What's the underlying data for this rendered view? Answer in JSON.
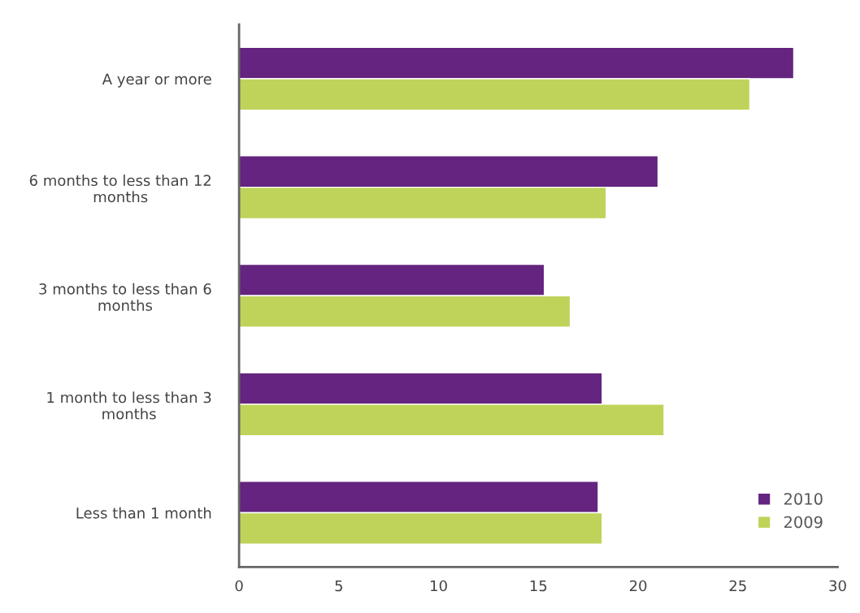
{
  "chart_data": {
    "type": "bar",
    "orientation": "horizontal",
    "categories": [
      "A year or more",
      "6 months to less than 12 months",
      "3 months to less than 6 months",
      "1 month to less than 3 months",
      "Less than 1 month"
    ],
    "series": [
      {
        "name": "2010",
        "color": "#64247f",
        "values": [
          27.8,
          21.0,
          15.3,
          18.2,
          18.0
        ]
      },
      {
        "name": "2009",
        "color": "#bfd35a",
        "values": [
          25.6,
          18.4,
          16.6,
          21.3,
          18.2
        ]
      }
    ],
    "xlim": [
      0,
      30
    ],
    "xticks": [
      0,
      5,
      10,
      15,
      20,
      25,
      30
    ],
    "grid": false,
    "legend": "bottom right"
  }
}
